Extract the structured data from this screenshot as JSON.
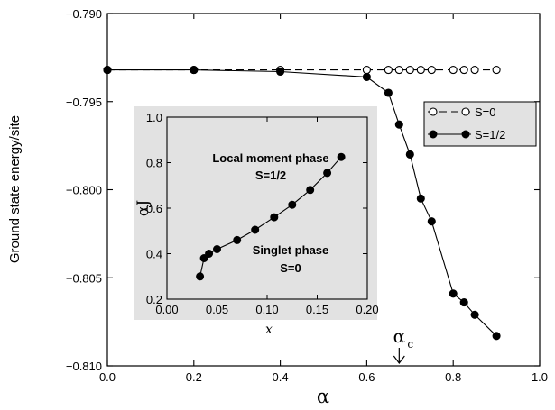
{
  "chart_data": [
    {
      "type": "line",
      "xlabel": "α",
      "ylabel": "Ground state energy/site",
      "xlim": [
        0.0,
        1.0
      ],
      "ylim": [
        -0.81,
        -0.79
      ],
      "x_ticks": [
        "0.0",
        "0.2",
        "0.4",
        "0.6",
        "0.8",
        "1.0"
      ],
      "y_ticks": [
        "−0.790",
        "−0.795",
        "−0.800",
        "−0.805",
        "−0.810"
      ],
      "grid": false,
      "legend_position": "right",
      "series": [
        {
          "name": "S=0",
          "style": "dashed-open-circle",
          "x": [
            0.0,
            0.2,
            0.4,
            0.6,
            0.65,
            0.675,
            0.7,
            0.725,
            0.75,
            0.8,
            0.825,
            0.85,
            0.9
          ],
          "y": [
            -0.7932,
            -0.7932,
            -0.7932,
            -0.7932,
            -0.7932,
            -0.7932,
            -0.7932,
            -0.7932,
            -0.7932,
            -0.7932,
            -0.7932,
            -0.7932,
            -0.7932
          ]
        },
        {
          "name": "S=1/2",
          "style": "solid-filled-circle",
          "x": [
            0.0,
            0.2,
            0.4,
            0.6,
            0.65,
            0.675,
            0.7,
            0.725,
            0.75,
            0.8,
            0.825,
            0.85,
            0.9
          ],
          "y": [
            -0.7932,
            -0.7932,
            -0.7933,
            -0.7936,
            -0.7945,
            -0.7963,
            -0.798,
            -0.8005,
            -0.8018,
            -0.8059,
            -0.8064,
            -0.8071,
            -0.8083
          ]
        }
      ],
      "annotation": {
        "main": "α",
        "sub": "c",
        "x": 0.675
      }
    },
    {
      "type": "line",
      "xlabel": "x",
      "ylabel": "αJ",
      "xlim": [
        0.0,
        0.2
      ],
      "ylim": [
        0.2,
        1.0
      ],
      "x_ticks": [
        "0.00",
        "0.05",
        "0.10",
        "0.15",
        "0.20"
      ],
      "y_ticks": [
        "0.2",
        "0.4",
        "0.6",
        "0.8",
        "1.0"
      ],
      "grid": false,
      "series": [
        {
          "style": "solid-filled-circle",
          "x": [
            0.033,
            0.037,
            0.042,
            0.05,
            0.07,
            0.088,
            0.107,
            0.125,
            0.143,
            0.16,
            0.174
          ],
          "y": [
            0.3,
            0.38,
            0.4,
            0.42,
            0.46,
            0.505,
            0.56,
            0.615,
            0.68,
            0.755,
            0.825
          ]
        }
      ],
      "annotations": {
        "local_line1": "Local moment phase",
        "local_line2": "S=1/2",
        "singlet_line1": "Singlet phase",
        "singlet_line2": "S=0"
      }
    }
  ]
}
